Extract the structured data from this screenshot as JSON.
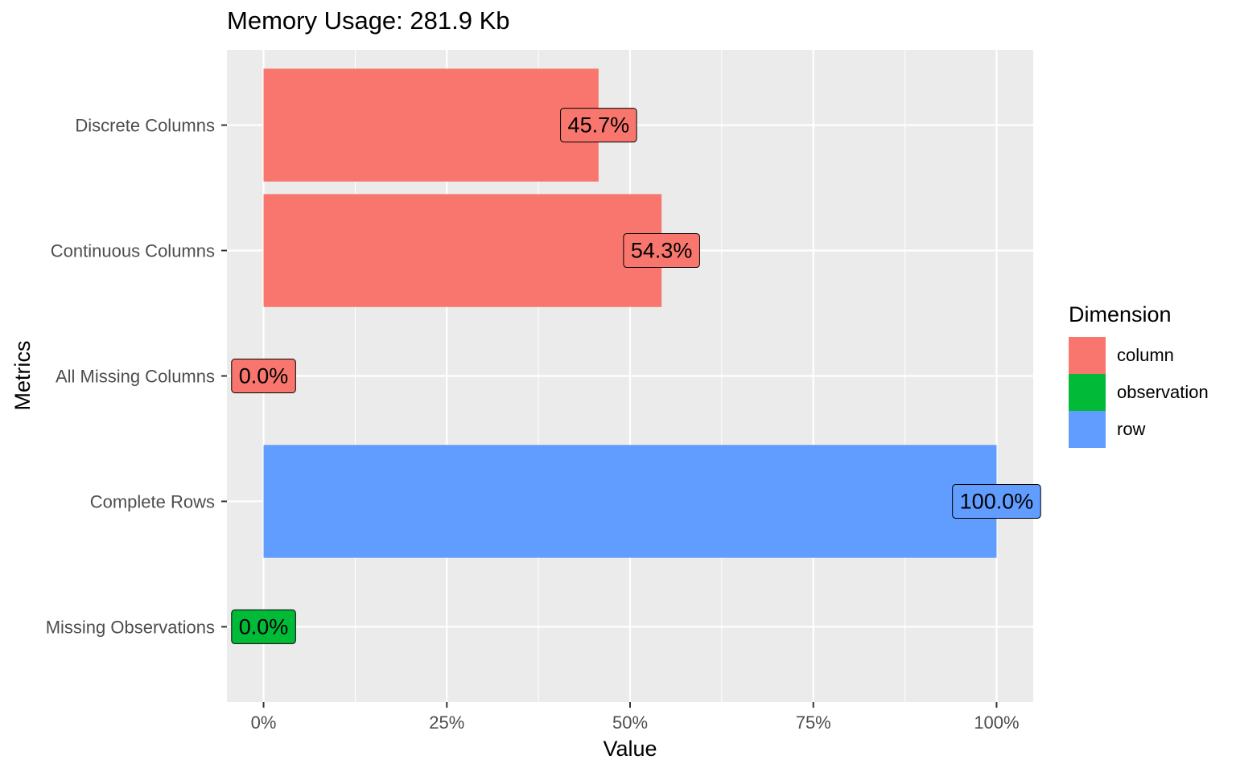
{
  "chart_data": {
    "type": "bar",
    "orientation": "horizontal",
    "title": "Memory Usage: 281.9 Kb",
    "xlabel": "Value",
    "ylabel": "Metrics",
    "xlim": [
      -0.05,
      1.05
    ],
    "x_ticks": [
      0,
      0.25,
      0.5,
      0.75,
      1.0
    ],
    "x_tick_labels": [
      "0%",
      "25%",
      "50%",
      "75%",
      "100%"
    ],
    "grid": true,
    "legend_position": "right",
    "legend_title": "Dimension",
    "legend": [
      {
        "name": "column",
        "color": "#F8766D"
      },
      {
        "name": "observation",
        "color": "#00BA38"
      },
      {
        "name": "row",
        "color": "#619CFF"
      }
    ],
    "categories": [
      "Discrete Columns",
      "Continuous Columns",
      "All Missing Columns",
      "Complete Rows",
      "Missing Observations"
    ],
    "values": [
      0.457,
      0.543,
      0.0,
      1.0,
      0.0
    ],
    "labels": [
      "45.7%",
      "54.3%",
      "0.0%",
      "100.0%",
      "0.0%"
    ],
    "dimension": [
      "column",
      "column",
      "column",
      "row",
      "observation"
    ]
  }
}
